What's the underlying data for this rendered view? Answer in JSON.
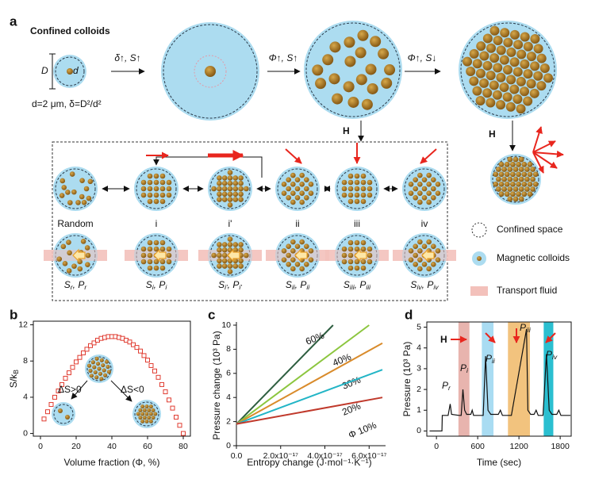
{
  "panel_a": {
    "label": "a",
    "title": "Confined colloids",
    "D": "D",
    "d": "d",
    "arrow1": "δ↑, S↑",
    "caption": "d=2 μm, δ=D²/d²",
    "arrow2": "Φ↑, S↑",
    "arrow3": "Φ↑, S↓",
    "field": "H",
    "states": [
      {
        "name": "Random",
        "label": [
          "S",
          "r",
          ", P",
          "r"
        ]
      },
      {
        "name": "i",
        "label": [
          "S",
          "i",
          ", P",
          "i"
        ]
      },
      {
        "name": "i'",
        "label": [
          "S",
          "i'",
          ", P",
          "i'"
        ]
      },
      {
        "name": "ii",
        "label": [
          "S",
          "ii",
          ", P",
          "ii"
        ]
      },
      {
        "name": "iii",
        "label": [
          "S",
          "iii",
          ", P",
          "iii"
        ]
      },
      {
        "name": "iv",
        "label": [
          "S",
          "iv",
          ", P",
          "iv"
        ]
      }
    ],
    "legend": [
      "Confined space",
      "Magnetic colloids",
      "Transport fluid"
    ]
  },
  "chart_data": [
    {
      "type": "scatter",
      "label": "b",
      "x": [
        2,
        4,
        6,
        8,
        10,
        12,
        14,
        16,
        18,
        20,
        22,
        24,
        26,
        28,
        30,
        32,
        34,
        36,
        38,
        40,
        42,
        44,
        46,
        48,
        50,
        52,
        54,
        56,
        58,
        60,
        62,
        64,
        66,
        68,
        70,
        72,
        74,
        76,
        78,
        80
      ],
      "values": [
        1.6,
        2.4,
        3.2,
        4.0,
        4.7,
        5.4,
        6.1,
        6.7,
        7.3,
        7.9,
        8.4,
        8.9,
        9.3,
        9.7,
        10.0,
        10.3,
        10.5,
        10.6,
        10.7,
        10.7,
        10.7,
        10.6,
        10.5,
        10.3,
        10.1,
        9.8,
        9.5,
        9.1,
        8.6,
        8.1,
        7.5,
        6.9,
        6.2,
        5.4,
        4.6,
        3.7,
        2.8,
        1.8,
        0.9,
        0.0
      ],
      "color": "#e03c31",
      "xlim": [
        -4,
        84
      ],
      "ylim": [
        -0.3,
        12.4
      ],
      "xticks": [
        0,
        20,
        40,
        60,
        80
      ],
      "yticks": [
        0,
        4,
        8,
        12
      ],
      "xlabel": "Volume fraction (Φ, %)",
      "ylabel": [
        "S/k",
        "B"
      ],
      "annotations": [
        "ΔS>0",
        "ΔS<0"
      ]
    },
    {
      "type": "line",
      "label": "c",
      "xlim": [
        0,
        6.6e-17
      ],
      "ylim": [
        0,
        10
      ],
      "xticks": [
        {
          "value": 0,
          "label": "0.0"
        },
        {
          "value": 2e-17,
          "label": "2.0x10⁻¹⁷"
        },
        {
          "value": 4e-17,
          "label": "4.0x10⁻¹⁷"
        },
        {
          "value": 6e-17,
          "label": "6.0x10⁻¹⁷"
        }
      ],
      "yticks": [
        0,
        2,
        4,
        6,
        8,
        10
      ],
      "xlabel": "Entropy change (J·mol⁻¹·K⁻¹)",
      "ylabel": "Pressure change (10³ Pa)",
      "series": [
        {
          "name": "60%",
          "color": "#2e5e40",
          "x": [
            0,
            4.37e-17
          ],
          "values": [
            1.8,
            10
          ]
        },
        {
          "name": "40%",
          "color": "#8cc63f",
          "x": [
            0,
            6e-17
          ],
          "values": [
            1.8,
            10
          ]
        },
        {
          "name": "30%",
          "color": "#d98b2b",
          "x": [
            0,
            6.6e-17
          ],
          "values": [
            1.8,
            8.5
          ]
        },
        {
          "name": "20%",
          "color": "#22b5c6",
          "x": [
            0,
            6.6e-17
          ],
          "values": [
            1.8,
            6.3
          ]
        },
        {
          "name": "Φ 10%",
          "color": "#c0392b",
          "x": [
            0,
            6.6e-17
          ],
          "values": [
            1.8,
            4.0
          ]
        }
      ]
    },
    {
      "type": "line",
      "label": "d",
      "xlim": [
        -140,
        1960
      ],
      "ylim": [
        -0.25,
        5.25
      ],
      "xticks": [
        0,
        600,
        1200,
        1800
      ],
      "yticks": [
        0,
        1,
        2,
        3,
        4,
        5
      ],
      "xlabel": "Time (sec)",
      "ylabel": "Pressure (10³ Pa)",
      "color": "#111111",
      "x": [
        -100,
        80,
        85,
        170,
        200,
        220,
        330,
        360,
        385,
        410,
        440,
        500,
        520,
        540,
        680,
        715,
        750,
        790,
        900,
        930,
        960,
        1090,
        1310,
        1330,
        1370,
        1420,
        1450,
        1480,
        1550,
        1600,
        1640,
        1680,
        1750,
        1780,
        1810,
        1950
      ],
      "values": [
        0,
        0,
        0.75,
        0.75,
        1.3,
        0.8,
        0.75,
        0.75,
        2.0,
        1.0,
        0.8,
        0.8,
        1.0,
        0.75,
        0.75,
        3.6,
        1.0,
        0.8,
        0.8,
        1.0,
        0.75,
        0.75,
        4.9,
        1.0,
        0.8,
        0.8,
        1.0,
        0.75,
        0.75,
        3.7,
        1.0,
        0.8,
        0.8,
        1.0,
        0.75,
        0.75
      ],
      "bands": [
        {
          "start": 320,
          "end": 480,
          "color": "#e8b4ae"
        },
        {
          "start": 660,
          "end": 830,
          "color": "#a9dcf2"
        },
        {
          "start": 1040,
          "end": 1360,
          "color": "#f2c37e"
        },
        {
          "start": 1560,
          "end": 1700,
          "color": "#2bbfd0"
        }
      ],
      "field": "H",
      "annotations": [
        [
          "P",
          "r"
        ],
        [
          "P",
          "i"
        ],
        [
          "P",
          "ii"
        ],
        [
          "P",
          "iii"
        ],
        [
          "P",
          "iv"
        ]
      ]
    }
  ]
}
